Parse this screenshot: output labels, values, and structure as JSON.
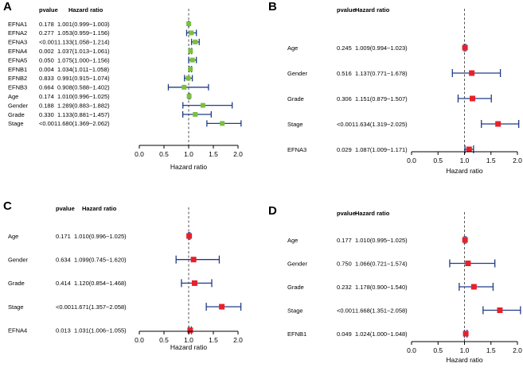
{
  "headers": {
    "pvalue": "pvalue",
    "hazard_ratio": "Hazard ratio"
  },
  "colors": {
    "interval": "#1f3c88",
    "reference": "#555555",
    "axis": "#000000"
  },
  "chart_data": [
    {
      "panel": "A",
      "type": "forest",
      "marker_color": "#7cbf3f",
      "xlabel": "Hazard ratio",
      "xlim": [
        0,
        2.0
      ],
      "xticks": [
        "0.0",
        "0.5",
        "1.0",
        "1.5",
        "2.0"
      ],
      "reference_line": 1,
      "rows": [
        {
          "label": "EFNA1",
          "pvalue": "0.178",
          "hr_text": "1.001(0.999−1.003)",
          "hr": 1.001,
          "lower": 0.999,
          "upper": 1.003
        },
        {
          "label": "EFNA2",
          "pvalue": "0.277",
          "hr_text": "1.053(0.959−1.156)",
          "hr": 1.053,
          "lower": 0.959,
          "upper": 1.156
        },
        {
          "label": "EFNA3",
          "pvalue": "<0.001",
          "hr_text": "1.133(1.058−1.214)",
          "hr": 1.133,
          "lower": 1.058,
          "upper": 1.214
        },
        {
          "label": "EFNA4",
          "pvalue": "0.002",
          "hr_text": "1.037(1.013−1.061)",
          "hr": 1.037,
          "lower": 1.013,
          "upper": 1.061
        },
        {
          "label": "EFNA5",
          "pvalue": "0.050",
          "hr_text": "1.075(1.000−1.156)",
          "hr": 1.075,
          "lower": 1.0,
          "upper": 1.156
        },
        {
          "label": "EFNB1",
          "pvalue": "0.004",
          "hr_text": "1.034(1.011−1.058)",
          "hr": 1.034,
          "lower": 1.011,
          "upper": 1.058
        },
        {
          "label": "EFNB2",
          "pvalue": "0.833",
          "hr_text": "0.991(0.915−1.074)",
          "hr": 0.991,
          "lower": 0.915,
          "upper": 1.074
        },
        {
          "label": "EFNB3",
          "pvalue": "0.664",
          "hr_text": "0.908(0.588−1.402)",
          "hr": 0.908,
          "lower": 0.588,
          "upper": 1.402
        },
        {
          "label": "Age",
          "pvalue": "0.174",
          "hr_text": "1.010(0.996−1.025)",
          "hr": 1.01,
          "lower": 0.996,
          "upper": 1.025
        },
        {
          "label": "Gender",
          "pvalue": "0.188",
          "hr_text": "1.289(0.883−1.882)",
          "hr": 1.289,
          "lower": 0.883,
          "upper": 1.882
        },
        {
          "label": "Grade",
          "pvalue": "0.330",
          "hr_text": "1.133(0.881−1.457)",
          "hr": 1.133,
          "lower": 0.881,
          "upper": 1.457
        },
        {
          "label": "Stage",
          "pvalue": "<0.001",
          "hr_text": "1.680(1.369−2.062)",
          "hr": 1.68,
          "lower": 1.369,
          "upper": 2.062
        }
      ]
    },
    {
      "panel": "B",
      "type": "forest",
      "marker_color": "#e8202a",
      "xlabel": "Hazard ratio",
      "xlim": [
        0,
        2.0
      ],
      "xticks": [
        "0.0",
        "0.5",
        "1.0",
        "1.5",
        "2.0"
      ],
      "reference_line": 1,
      "rows": [
        {
          "label": "Age",
          "pvalue": "0.245",
          "hr_text": "1.009(0.994−1.023)",
          "hr": 1.009,
          "lower": 0.994,
          "upper": 1.023
        },
        {
          "label": "Gender",
          "pvalue": "0.516",
          "hr_text": "1.137(0.771−1.678)",
          "hr": 1.137,
          "lower": 0.771,
          "upper": 1.678
        },
        {
          "label": "Grade",
          "pvalue": "0.306",
          "hr_text": "1.151(0.879−1.507)",
          "hr": 1.151,
          "lower": 0.879,
          "upper": 1.507
        },
        {
          "label": "Stage",
          "pvalue": "<0.001",
          "hr_text": "1.634(1.319−2.025)",
          "hr": 1.634,
          "lower": 1.319,
          "upper": 2.025
        },
        {
          "label": "EFNA3",
          "pvalue": "0.029",
          "hr_text": "1.087(1.009−1.171)",
          "hr": 1.087,
          "lower": 1.009,
          "upper": 1.171
        }
      ]
    },
    {
      "panel": "C",
      "type": "forest",
      "marker_color": "#e8202a",
      "xlabel": "Hazard ratio",
      "xlim": [
        0,
        2.0
      ],
      "xticks": [
        "0.0",
        "0.5",
        "1.0",
        "1.5",
        "2.0"
      ],
      "reference_line": 1,
      "rows": [
        {
          "label": "Age",
          "pvalue": "0.171",
          "hr_text": "1.010(0.996−1.025)",
          "hr": 1.01,
          "lower": 0.996,
          "upper": 1.025
        },
        {
          "label": "Gender",
          "pvalue": "0.634",
          "hr_text": "1.099(0.745−1.620)",
          "hr": 1.099,
          "lower": 0.745,
          "upper": 1.62
        },
        {
          "label": "Grade",
          "pvalue": "0.414",
          "hr_text": "1.120(0.854−1.468)",
          "hr": 1.12,
          "lower": 0.854,
          "upper": 1.468
        },
        {
          "label": "Stage",
          "pvalue": "<0.001",
          "hr_text": "1.671(1.357−2.058)",
          "hr": 1.671,
          "lower": 1.357,
          "upper": 2.058
        },
        {
          "label": "EFNA4",
          "pvalue": "0.013",
          "hr_text": "1.031(1.006−1.055)",
          "hr": 1.031,
          "lower": 1.006,
          "upper": 1.055
        }
      ]
    },
    {
      "panel": "D",
      "type": "forest",
      "marker_color": "#e8202a",
      "xlabel": "Hazard ratio",
      "xlim": [
        0,
        2.0
      ],
      "xticks": [
        "0.0",
        "0.5",
        "1.0",
        "1.5",
        "2.0"
      ],
      "reference_line": 1,
      "rows": [
        {
          "label": "Age",
          "pvalue": "0.177",
          "hr_text": "1.010(0.995−1.025)",
          "hr": 1.01,
          "lower": 0.995,
          "upper": 1.025
        },
        {
          "label": "Gender",
          "pvalue": "0.750",
          "hr_text": "1.066(0.721−1.574)",
          "hr": 1.066,
          "lower": 0.721,
          "upper": 1.574
        },
        {
          "label": "Grade",
          "pvalue": "0.232",
          "hr_text": "1.178(0.900−1.540)",
          "hr": 1.178,
          "lower": 0.9,
          "upper": 1.54
        },
        {
          "label": "Stage",
          "pvalue": "<0.001",
          "hr_text": "1.668(1.351−2.058)",
          "hr": 1.668,
          "lower": 1.351,
          "upper": 2.058
        },
        {
          "label": "EFNB1",
          "pvalue": "0.049",
          "hr_text": "1.024(1.000−1.048)",
          "hr": 1.024,
          "lower": 1.0,
          "upper": 1.048
        }
      ]
    }
  ]
}
